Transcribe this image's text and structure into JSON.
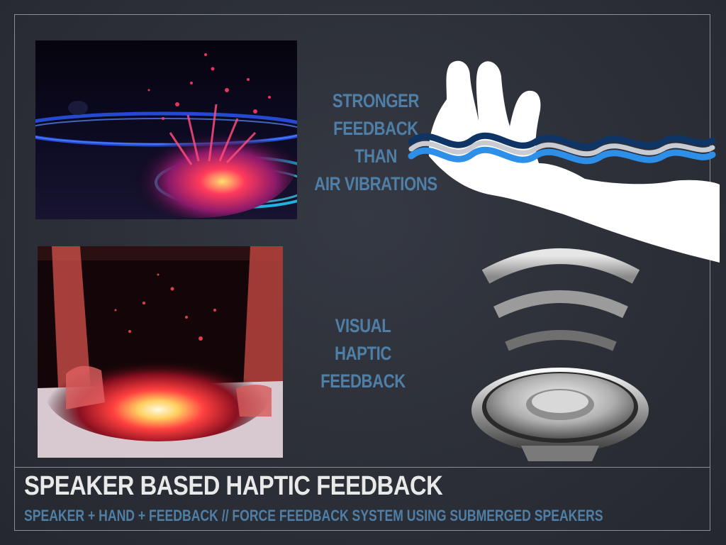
{
  "slide": {
    "title": "SPEAKER BASED HAPTIC FEEDBACK",
    "subtitle": "SPEAKER + HAND + FEEDBACK // FORCE FEEDBACK SYSTEM USING SUBMERGED SPEAKERS"
  },
  "captions": {
    "stronger": [
      "STRONGER",
      "FEEDBACK",
      "THAN",
      "AIR VIBRATIONS"
    ],
    "visual": [
      "VISUAL",
      "HAPTIC",
      "FEEDBACK"
    ]
  },
  "colors": {
    "background": "#2c2f37",
    "frame": "#8a8d93",
    "accent_blue": "#4f7fa7",
    "title_text": "#e9e9e9"
  },
  "icons": {
    "hand": "hand-icon",
    "speaker": "speaker-icon",
    "wave": "wave-lines-icon"
  }
}
